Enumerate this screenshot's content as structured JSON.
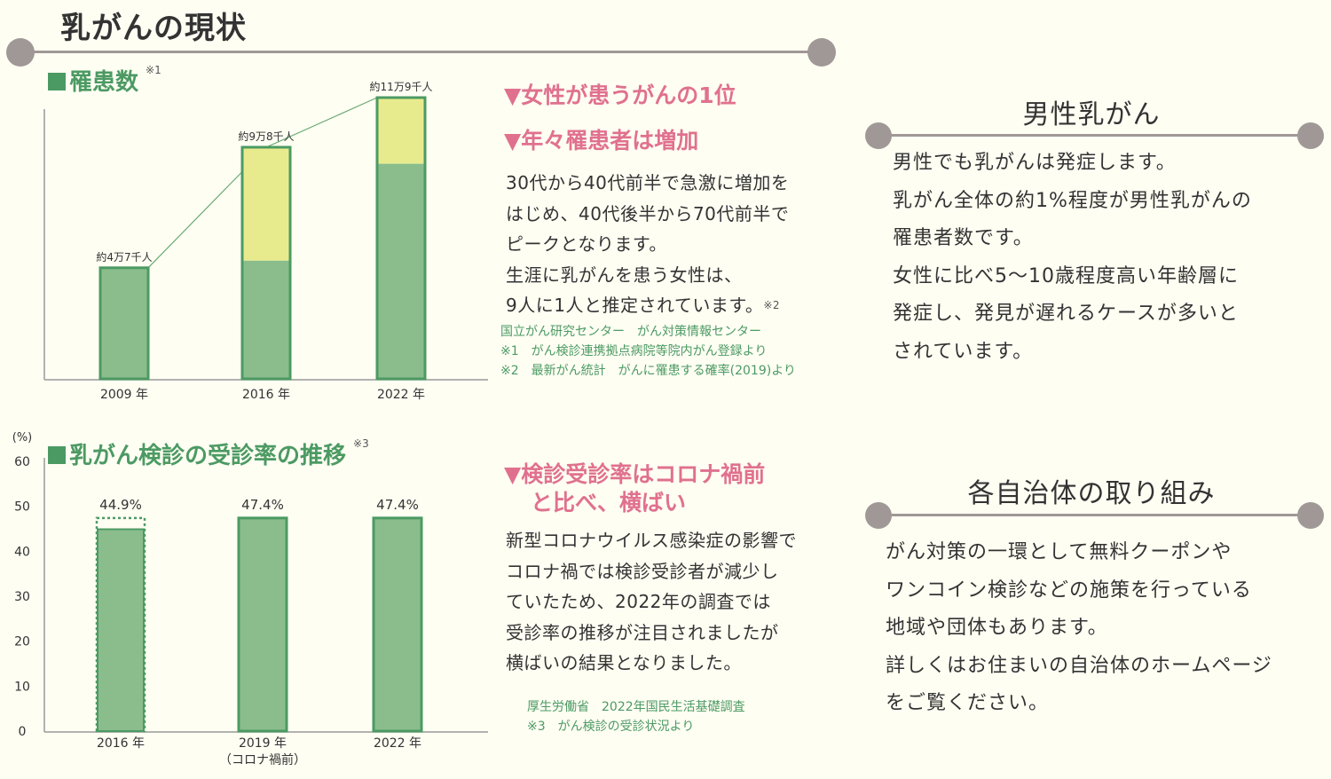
{
  "page_title": "乳がんの現状",
  "patients_section": {
    "title": "罹患数",
    "note_mark": "※1",
    "headlines": [
      "▼女性が患うがんの1位",
      "▼年々罹患者は増加"
    ],
    "body": [
      "30代から40代前半で急激に増加を",
      "はじめ、40代後半から70代前半で",
      "ピークとなります。",
      "生涯に乳がんを患う女性は、",
      "9人に1人と推定されています。"
    ],
    "body_note_mark": "※2",
    "sources": [
      "国立がん研究センター　がん対策情報センター",
      "※1　がん検診連携拠点病院等院内がん登録より",
      "※2　最新がん統計　がんに罹患する確率(2019)より"
    ]
  },
  "screening_section": {
    "title": "乳がん検診の受診率の推移",
    "note_mark": "※3",
    "headline_lines": [
      "▼検診受診率はコロナ禍前",
      "と比べ、横ばい"
    ],
    "body": [
      "新型コロナウイルス感染症の影響で",
      "コロナ禍では検診受診者が減少し",
      "ていたため、2022年の調査では",
      "受診率の推移が注目されましたが",
      "横ばいの結果となりました。"
    ],
    "sources": [
      "厚生労働省　2022年国民生活基礎調査",
      "※3　がん検診の受診状況より"
    ]
  },
  "male_section": {
    "title": "男性乳がん",
    "body": [
      "男性でも乳がんは発症します。",
      "乳がん全体の約1%程度が男性乳がんの",
      "罹患者数です。",
      "女性に比べ5〜10歳程度高い年齢層に",
      "発症し、発見が遅れるケースが多いと",
      "されています。"
    ]
  },
  "local_section": {
    "title": "各自治体の取り組み",
    "body": [
      "がん対策の一環として無料クーポンや",
      "ワンコイン検診などの施策を行っている",
      "地域や団体もあります。",
      "詳しくはお住まいの自治体のホームページ",
      "をご覧ください。"
    ]
  },
  "colors": {
    "green": "#4c9a63",
    "bar_green": "#8bbd8c",
    "bar_yellow": "#e8eb8d",
    "pink": "#e0718e",
    "gray_line": "#a09896"
  },
  "chart_data": [
    {
      "type": "bar",
      "title": "罹患数",
      "categories": [
        "2009 年",
        "2016 年",
        "2022 年"
      ],
      "values": [
        47000,
        98000,
        119000
      ],
      "base_values": [
        47000,
        50000,
        91000
      ],
      "data_labels": [
        "約4万7千人",
        "約9万8千人",
        "約11万9千人"
      ],
      "ylim": [
        0,
        122000
      ],
      "grid": false
    },
    {
      "type": "bar",
      "title": "乳がん検診の受診率の推移",
      "ylabel": "(%)",
      "categories": [
        "2016 年",
        "2019 年",
        "2022 年"
      ],
      "category_sublabels": [
        "",
        "（コロナ禍前）",
        ""
      ],
      "values": [
        44.9,
        47.4,
        47.4
      ],
      "data_labels": [
        "44.9%",
        "47.4%",
        "47.4%"
      ],
      "dotted_reference": 47.4,
      "yticks": [
        "0",
        "10",
        "20",
        "30",
        "40",
        "50",
        "60"
      ],
      "ylim": [
        0,
        60
      ],
      "grid": false
    }
  ]
}
